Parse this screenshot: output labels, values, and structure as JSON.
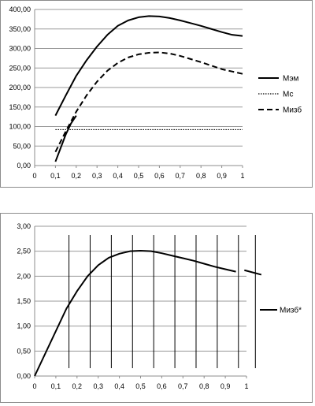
{
  "chart_data": [
    {
      "type": "line",
      "title": "",
      "xlabel": "",
      "ylabel": "",
      "xlim": [
        0,
        1
      ],
      "ylim": [
        0,
        400
      ],
      "x_ticks": [
        "0",
        "0,1",
        "0,2",
        "0,3",
        "0,4",
        "0,5",
        "0,6",
        "0,7",
        "0,8",
        "0,9",
        "1"
      ],
      "y_ticks": [
        "0,00",
        "50,00",
        "100,00",
        "150,00",
        "200,00",
        "250,00",
        "300,00",
        "350,00",
        "400,00"
      ],
      "grid": "horizontal",
      "legend_position": "right",
      "series": [
        {
          "name": "Мэм",
          "style": "solid",
          "color": "#000000",
          "x": [
            0.1,
            0.15,
            0.2,
            0.25,
            0.3,
            0.35,
            0.4,
            0.45,
            0.5,
            0.55,
            0.6,
            0.65,
            0.7,
            0.75,
            0.8,
            0.85,
            0.9,
            0.95,
            1.0
          ],
          "y": [
            128,
            180,
            230,
            270,
            305,
            335,
            358,
            372,
            380,
            383,
            382,
            378,
            372,
            365,
            358,
            350,
            342,
            335,
            332
          ]
        },
        {
          "name": "Мс",
          "style": "dotted",
          "color": "#000000",
          "x": [
            0.1,
            1.0
          ],
          "y": [
            92,
            92
          ]
        },
        {
          "name": "Мизб",
          "style": "dashed",
          "color": "#000000",
          "x": [
            0.1,
            0.15,
            0.2,
            0.25,
            0.3,
            0.35,
            0.4,
            0.45,
            0.5,
            0.55,
            0.6,
            0.65,
            0.7,
            0.75,
            0.8,
            0.85,
            0.9,
            0.95,
            1.0
          ],
          "y": [
            35,
            88,
            138,
            180,
            215,
            243,
            263,
            277,
            285,
            289,
            290,
            287,
            281,
            273,
            265,
            256,
            247,
            241,
            235
          ]
        },
        {
          "name": "",
          "style": "solid",
          "color": "#000000",
          "x": [
            0.1,
            0.125,
            0.15,
            0.175,
            0.2
          ],
          "y": [
            10,
            45,
            80,
            108,
            128
          ]
        }
      ]
    },
    {
      "type": "line",
      "title": "",
      "xlabel": "",
      "ylabel": "",
      "xlim": [
        0,
        1
      ],
      "ylim": [
        0,
        3
      ],
      "x_ticks": [
        "0",
        "0,1",
        "0,2",
        "0,3",
        "0,4",
        "0,5",
        "0,6",
        "0,7",
        "0,8",
        "0,9",
        "1"
      ],
      "y_ticks": [
        "0,00",
        "0,50",
        "1,00",
        "1,50",
        "2,00",
        "2,50",
        "3,00"
      ],
      "grid": "horizontal",
      "legend_position": "right",
      "vertical_lines_x": [
        0.162,
        0.262,
        0.362,
        0.462,
        0.562,
        0.662,
        0.762,
        0.862,
        0.962,
        1.042
      ],
      "series": [
        {
          "name": "Мизб*",
          "style": "solid",
          "color": "#000000",
          "x": [
            0.0,
            0.05,
            0.1,
            0.15,
            0.2,
            0.25,
            0.3,
            0.35,
            0.4,
            0.45,
            0.5,
            0.55,
            0.6,
            0.65,
            0.7,
            0.75,
            0.8,
            0.85,
            0.9,
            0.95
          ],
          "y": [
            0.0,
            0.45,
            0.9,
            1.35,
            1.7,
            2.0,
            2.22,
            2.37,
            2.45,
            2.5,
            2.51,
            2.5,
            2.46,
            2.41,
            2.36,
            2.31,
            2.25,
            2.19,
            2.14,
            2.09
          ]
        },
        {
          "name": "",
          "style": "solid",
          "color": "#000000",
          "x": [
            0.99,
            1.07
          ],
          "y": [
            2.12,
            2.03
          ]
        }
      ]
    }
  ]
}
